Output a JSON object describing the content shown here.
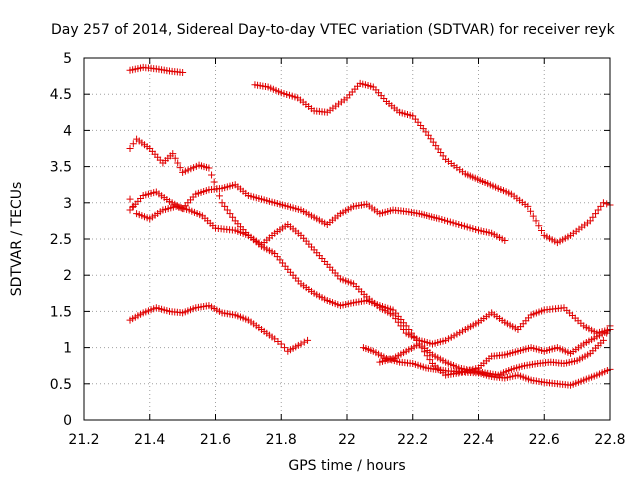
{
  "chart_data": {
    "type": "scatter",
    "title": "Day 257 of 2014, Sidereal Day-to-day VTEC variation (SDTVAR) for receiver reyk",
    "xlabel": "GPS time / hours",
    "ylabel": "SDTVAR / TECUs",
    "xlim": [
      21.2,
      22.8
    ],
    "ylim": [
      0,
      5
    ],
    "xticks": [
      "21.2",
      "21.4",
      "21.6",
      "21.8",
      "22",
      "22.2",
      "22.4",
      "22.6",
      "22.8"
    ],
    "yticks": [
      "0",
      "0.5",
      "1",
      "1.5",
      "2",
      "2.5",
      "3",
      "3.5",
      "4",
      "4.5",
      "5"
    ],
    "grid": true,
    "marker": "+",
    "color": "#e00000",
    "series": [
      {
        "name": "s1",
        "step": 0.008,
        "points": [
          [
            21.34,
            4.83
          ],
          [
            21.38,
            4.87
          ],
          [
            21.42,
            4.85
          ],
          [
            21.46,
            4.82
          ],
          [
            21.5,
            4.8
          ]
        ]
      },
      {
        "name": "s2",
        "step": 0.008,
        "points": [
          [
            21.72,
            4.63
          ],
          [
            21.76,
            4.6
          ],
          [
            21.8,
            4.52
          ],
          [
            21.85,
            4.45
          ],
          [
            21.9,
            4.27
          ],
          [
            21.94,
            4.25
          ],
          [
            22.0,
            4.45
          ],
          [
            22.04,
            4.65
          ],
          [
            22.08,
            4.6
          ],
          [
            22.12,
            4.4
          ],
          [
            22.16,
            4.25
          ],
          [
            22.2,
            4.2
          ],
          [
            22.24,
            3.98
          ],
          [
            22.3,
            3.6
          ],
          [
            22.36,
            3.4
          ],
          [
            22.42,
            3.28
          ],
          [
            22.46,
            3.2
          ],
          [
            22.5,
            3.12
          ],
          [
            22.55,
            2.95
          ],
          [
            22.6,
            2.55
          ],
          [
            22.64,
            2.45
          ],
          [
            22.68,
            2.55
          ],
          [
            22.74,
            2.75
          ],
          [
            22.78,
            3.0
          ],
          [
            22.8,
            2.97
          ]
        ]
      },
      {
        "name": "s3",
        "step": 0.008,
        "points": [
          [
            21.34,
            3.75
          ],
          [
            21.36,
            3.88
          ],
          [
            21.4,
            3.75
          ],
          [
            21.44,
            3.55
          ],
          [
            21.47,
            3.68
          ],
          [
            21.5,
            3.42
          ],
          [
            21.55,
            3.52
          ],
          [
            21.58,
            3.48
          ],
          [
            21.62,
            3.0
          ],
          [
            21.66,
            2.75
          ],
          [
            21.7,
            2.55
          ],
          [
            21.74,
            2.42
          ],
          [
            21.78,
            2.58
          ],
          [
            21.82,
            2.7
          ],
          [
            21.86,
            2.55
          ],
          [
            21.9,
            2.35
          ],
          [
            21.94,
            2.15
          ],
          [
            21.98,
            1.95
          ],
          [
            22.02,
            1.88
          ],
          [
            22.06,
            1.7
          ],
          [
            22.1,
            1.55
          ],
          [
            22.14,
            1.45
          ],
          [
            22.18,
            1.2
          ],
          [
            22.22,
            1.1
          ],
          [
            22.26,
            1.05
          ],
          [
            22.3,
            1.1
          ],
          [
            22.36,
            1.25
          ],
          [
            22.4,
            1.35
          ],
          [
            22.44,
            1.48
          ],
          [
            22.48,
            1.35
          ],
          [
            22.52,
            1.25
          ],
          [
            22.56,
            1.45
          ],
          [
            22.6,
            1.52
          ],
          [
            22.66,
            1.55
          ],
          [
            22.72,
            1.3
          ],
          [
            22.76,
            1.2
          ],
          [
            22.8,
            1.25
          ]
        ]
      },
      {
        "name": "s4",
        "step": 0.008,
        "points": [
          [
            21.34,
            2.9
          ],
          [
            21.38,
            3.1
          ],
          [
            21.42,
            3.15
          ],
          [
            21.46,
            3.02
          ],
          [
            21.5,
            2.92
          ],
          [
            21.54,
            3.12
          ],
          [
            21.58,
            3.18
          ],
          [
            21.62,
            3.2
          ],
          [
            21.66,
            3.25
          ],
          [
            21.7,
            3.1
          ],
          [
            21.74,
            3.05
          ],
          [
            21.78,
            3.0
          ],
          [
            21.82,
            2.95
          ],
          [
            21.86,
            2.9
          ],
          [
            21.9,
            2.8
          ],
          [
            21.94,
            2.7
          ],
          [
            21.98,
            2.85
          ],
          [
            22.02,
            2.95
          ],
          [
            22.06,
            2.98
          ],
          [
            22.1,
            2.85
          ],
          [
            22.14,
            2.9
          ],
          [
            22.18,
            2.88
          ],
          [
            22.22,
            2.85
          ],
          [
            22.28,
            2.78
          ],
          [
            22.34,
            2.7
          ],
          [
            22.4,
            2.62
          ],
          [
            22.44,
            2.58
          ],
          [
            22.48,
            2.48
          ]
        ]
      },
      {
        "name": "s5",
        "step": 0.008,
        "points": [
          [
            21.34,
            3.05
          ],
          [
            21.36,
            2.85
          ],
          [
            21.4,
            2.78
          ],
          [
            21.44,
            2.9
          ],
          [
            21.48,
            2.95
          ],
          [
            21.52,
            2.9
          ],
          [
            21.56,
            2.82
          ],
          [
            21.6,
            2.65
          ],
          [
            21.66,
            2.62
          ],
          [
            21.7,
            2.55
          ],
          [
            21.74,
            2.4
          ],
          [
            21.78,
            2.3
          ],
          [
            21.82,
            2.08
          ],
          [
            21.86,
            1.88
          ],
          [
            21.9,
            1.75
          ],
          [
            21.94,
            1.65
          ],
          [
            21.98,
            1.58
          ],
          [
            22.02,
            1.62
          ],
          [
            22.06,
            1.65
          ],
          [
            22.1,
            1.58
          ],
          [
            22.14,
            1.52
          ],
          [
            22.18,
            1.3
          ],
          [
            22.22,
            1.05
          ],
          [
            22.26,
            0.9
          ],
          [
            22.3,
            0.8
          ],
          [
            22.34,
            0.72
          ],
          [
            22.38,
            0.68
          ],
          [
            22.42,
            0.65
          ],
          [
            22.46,
            0.62
          ],
          [
            22.5,
            0.7
          ],
          [
            22.54,
            0.75
          ],
          [
            22.58,
            0.78
          ],
          [
            22.62,
            0.8
          ],
          [
            22.66,
            0.78
          ],
          [
            22.7,
            0.82
          ],
          [
            22.74,
            0.92
          ],
          [
            22.78,
            1.1
          ],
          [
            22.8,
            1.3
          ]
        ]
      },
      {
        "name": "s6",
        "step": 0.008,
        "points": [
          [
            21.34,
            1.38
          ],
          [
            21.38,
            1.48
          ],
          [
            21.42,
            1.55
          ],
          [
            21.46,
            1.5
          ],
          [
            21.5,
            1.48
          ],
          [
            21.54,
            1.55
          ],
          [
            21.58,
            1.58
          ],
          [
            21.62,
            1.48
          ],
          [
            21.66,
            1.45
          ],
          [
            21.7,
            1.38
          ],
          [
            21.74,
            1.25
          ],
          [
            21.78,
            1.12
          ],
          [
            21.8,
            1.05
          ],
          [
            21.82,
            0.95
          ],
          [
            21.86,
            1.05
          ],
          [
            21.88,
            1.1
          ]
        ]
      },
      {
        "name": "s7",
        "step": 0.008,
        "points": [
          [
            22.05,
            1.0
          ],
          [
            22.08,
            0.95
          ],
          [
            22.12,
            0.85
          ],
          [
            22.16,
            0.8
          ],
          [
            22.2,
            0.78
          ],
          [
            22.24,
            0.72
          ],
          [
            22.3,
            0.68
          ],
          [
            22.36,
            0.66
          ],
          [
            22.4,
            0.65
          ],
          [
            22.44,
            0.6
          ],
          [
            22.48,
            0.58
          ],
          [
            22.52,
            0.62
          ],
          [
            22.56,
            0.55
          ],
          [
            22.6,
            0.52
          ],
          [
            22.64,
            0.5
          ],
          [
            22.68,
            0.48
          ],
          [
            22.72,
            0.55
          ],
          [
            22.76,
            0.62
          ],
          [
            22.8,
            0.7
          ]
        ]
      },
      {
        "name": "s8",
        "step": 0.008,
        "points": [
          [
            22.1,
            0.8
          ],
          [
            22.14,
            0.85
          ],
          [
            22.18,
            0.95
          ],
          [
            22.22,
            1.05
          ],
          [
            22.26,
            0.78
          ],
          [
            22.3,
            0.62
          ],
          [
            22.34,
            0.65
          ],
          [
            22.4,
            0.72
          ],
          [
            22.44,
            0.88
          ],
          [
            22.48,
            0.9
          ],
          [
            22.52,
            0.95
          ],
          [
            22.56,
            1.0
          ],
          [
            22.6,
            0.95
          ],
          [
            22.64,
            1.0
          ],
          [
            22.68,
            0.92
          ],
          [
            22.72,
            1.05
          ],
          [
            22.76,
            1.15
          ],
          [
            22.8,
            1.25
          ]
        ]
      }
    ]
  }
}
